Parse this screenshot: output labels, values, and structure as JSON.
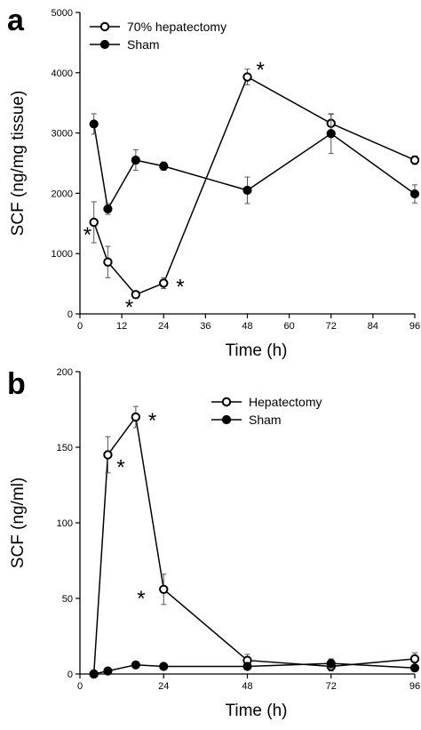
{
  "chart_data": [
    {
      "panel_label": "a",
      "type": "line",
      "xlabel": "Time (h)",
      "ylabel": "SCF (ng/mg tissue)",
      "xlim": [
        0,
        96
      ],
      "ylim": [
        0,
        5000
      ],
      "xticks": [
        0,
        12,
        24,
        36,
        48,
        60,
        72,
        84,
        96
      ],
      "yticks": [
        0,
        1000,
        2000,
        3000,
        4000,
        5000
      ],
      "legend_position": "top-left",
      "series": [
        {
          "name": "70% hepatectomy",
          "marker": "open-circle",
          "x": [
            4,
            8,
            16,
            24,
            48,
            72,
            96
          ],
          "y": [
            1520,
            860,
            320,
            510,
            3930,
            3160,
            2550
          ],
          "err": [
            340,
            260,
            0,
            90,
            130,
            150,
            70
          ]
        },
        {
          "name": "Sham",
          "marker": "filled-circle",
          "x": [
            4,
            8,
            16,
            24,
            48,
            72,
            96
          ],
          "y": [
            3150,
            1740,
            2550,
            2450,
            2050,
            2990,
            1990
          ],
          "err": [
            170,
            90,
            170,
            70,
            220,
            330,
            150
          ]
        }
      ],
      "annotations": [
        {
          "text": "*",
          "x": 4,
          "y": 1520,
          "pos": "below-left"
        },
        {
          "text": "*",
          "x": 16,
          "y": 320,
          "pos": "below-left"
        },
        {
          "text": "*",
          "x": 24,
          "y": 510,
          "pos": "right"
        },
        {
          "text": "*",
          "x": 48,
          "y": 3930,
          "pos": "upper-right"
        }
      ]
    },
    {
      "panel_label": "b",
      "type": "line",
      "xlabel": "Time (h)",
      "ylabel": "SCF (ng/ml)",
      "xlim": [
        0,
        96
      ],
      "ylim": [
        0,
        200
      ],
      "xticks": [
        0,
        24,
        48,
        72,
        96
      ],
      "yticks": [
        0,
        50,
        100,
        150,
        200
      ],
      "legend_position": "top-right",
      "series": [
        {
          "name": "Hepatectomy",
          "marker": "open-circle",
          "x": [
            4,
            8,
            16,
            24,
            48,
            72,
            96
          ],
          "y": [
            0,
            145,
            170,
            56,
            9,
            5,
            10
          ],
          "err": [
            0,
            12,
            7,
            10,
            4,
            3,
            4
          ]
        },
        {
          "name": "Sham",
          "marker": "filled-circle",
          "x": [
            4,
            8,
            16,
            24,
            48,
            72,
            96
          ],
          "y": [
            0,
            2,
            6,
            5,
            5,
            7,
            4
          ],
          "err": [
            0,
            1,
            2,
            2,
            2,
            3,
            2
          ]
        }
      ],
      "annotations": [
        {
          "text": "*",
          "x": 8,
          "y": 145,
          "pos": "below-right"
        },
        {
          "text": "*",
          "x": 16,
          "y": 170,
          "pos": "right"
        },
        {
          "text": "*",
          "x": 24,
          "y": 56,
          "pos": "left"
        }
      ]
    }
  ]
}
